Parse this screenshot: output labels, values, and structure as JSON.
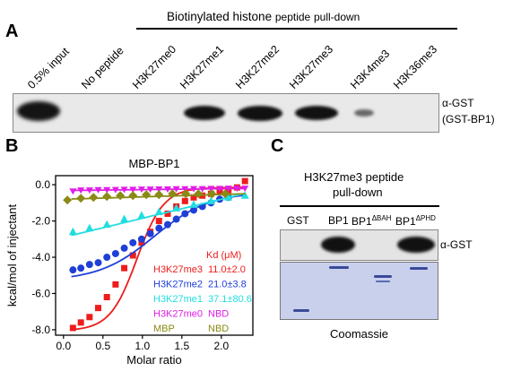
{
  "panelA": {
    "letter": "A",
    "group_title_main": "Biotinylated histone",
    "group_title_peptide": "peptide",
    "group_title_end": "pull-down",
    "lanes": [
      "0.5% input",
      "No peptide",
      "H3K27me0",
      "H3K27me1",
      "H3K27me2",
      "H3K27me3",
      "H3K4me3",
      "H3K36me3"
    ],
    "blot_label_1": "α-GST",
    "blot_label_2": "(GST-BP1)"
  },
  "panelB": {
    "letter": "B",
    "chart_data": {
      "type": "scatter",
      "title": "MBP-BP1",
      "xlabel": "Molar ratio",
      "ylabel": "kcal/mol of injectant",
      "xlim": [
        -0.1,
        2.4
      ],
      "ylim": [
        -8.3,
        0.5
      ],
      "xticks": [
        0.0,
        0.5,
        1.0,
        1.5,
        2.0
      ],
      "yticks": [
        0.0,
        -2.0,
        -4.0,
        -6.0,
        -8.0
      ],
      "xtick_labels": [
        "0.0",
        "0.5",
        "1.0",
        "1.5",
        "2.0"
      ],
      "ytick_labels": [
        "0.0",
        "-2.0",
        "-4.0",
        "-6.0",
        "-8.0"
      ],
      "legend_header": "Kd (μM)",
      "series": [
        {
          "name": "H3K27me3",
          "kd": "11.0±2.0",
          "color": "#ee1c1c",
          "marker": "square",
          "x": [
            0.12,
            0.22,
            0.33,
            0.44,
            0.55,
            0.66,
            0.77,
            0.88,
            0.99,
            1.1,
            1.21,
            1.32,
            1.43,
            1.54,
            1.65,
            1.76,
            1.87,
            1.98,
            2.09,
            2.2,
            2.3
          ],
          "y": [
            -7.9,
            -7.6,
            -7.3,
            -6.8,
            -6.2,
            -5.5,
            -4.6,
            -3.9,
            -3.2,
            -2.6,
            -2.0,
            -1.6,
            -1.2,
            -0.9,
            -0.7,
            -0.6,
            -0.5,
            -0.4,
            -0.3,
            -0.15,
            0.2
          ]
        },
        {
          "name": "H3K27me2",
          "kd": "21.0±3.8",
          "color": "#1f3fd6",
          "marker": "circle",
          "x": [
            0.12,
            0.22,
            0.33,
            0.44,
            0.55,
            0.66,
            0.77,
            0.88,
            0.99,
            1.1,
            1.21,
            1.32,
            1.43,
            1.54,
            1.65,
            1.76,
            1.87,
            1.98,
            2.09
          ],
          "y": [
            -4.7,
            -4.6,
            -4.4,
            -4.3,
            -4.0,
            -3.8,
            -3.5,
            -3.2,
            -3.0,
            -2.7,
            -2.4,
            -2.2,
            -1.9,
            -1.6,
            -1.4,
            -1.2,
            -1.0,
            -0.8,
            -0.7
          ]
        },
        {
          "name": "H3K27me1",
          "kd": "37.1±80.6",
          "color": "#22dde0",
          "marker": "triangle",
          "x": [
            0.12,
            0.33,
            0.55,
            0.77,
            0.99,
            1.21,
            1.43,
            1.65,
            1.87,
            2.09,
            2.3
          ],
          "y": [
            -2.6,
            -2.4,
            -2.2,
            -1.9,
            -1.7,
            -1.5,
            -1.3,
            -1.1,
            -0.9,
            -0.7,
            -0.6
          ]
        },
        {
          "name": "H3K27me0",
          "kd": "NBD",
          "color": "#e01ee8",
          "marker": "triangle-down",
          "x": [
            0.12,
            0.22,
            0.33,
            0.44,
            0.55,
            0.66,
            0.77,
            0.88,
            0.99,
            1.1,
            1.21,
            1.32,
            1.43,
            1.54,
            1.65,
            1.76,
            1.87,
            1.98,
            2.09,
            2.2,
            2.3
          ],
          "y": [
            -0.35,
            -0.3,
            -0.3,
            -0.28,
            -0.28,
            -0.27,
            -0.26,
            -0.26,
            -0.25,
            -0.25,
            -0.24,
            -0.24,
            -0.23,
            -0.23,
            -0.22,
            -0.22,
            -0.21,
            -0.21,
            -0.2,
            -0.2,
            -0.2
          ]
        },
        {
          "name": "MBP",
          "kd": "NBD",
          "color": "#8a8a16",
          "marker": "diamond",
          "x": [
            0.05,
            0.22,
            0.38,
            0.55,
            0.72,
            0.88,
            1.05,
            1.21,
            1.38,
            1.55,
            1.71,
            1.88,
            2.05
          ],
          "y": [
            -0.85,
            -0.75,
            -0.7,
            -0.65,
            -0.6,
            -0.6,
            -0.55,
            -0.55,
            -0.5,
            -0.5,
            -0.5,
            -0.5,
            -0.5
          ]
        }
      ]
    }
  },
  "panelC": {
    "letter": "C",
    "title_1": "H3K27me3 peptide",
    "title_2": "pull-down",
    "lanes": [
      "GST",
      "BP1",
      "BP1",
      "BP1"
    ],
    "lane_superscripts": [
      "",
      "",
      "ΔBAH",
      "ΔPHD"
    ],
    "blot_label": "α-GST",
    "gel_label": "Coomassie"
  }
}
